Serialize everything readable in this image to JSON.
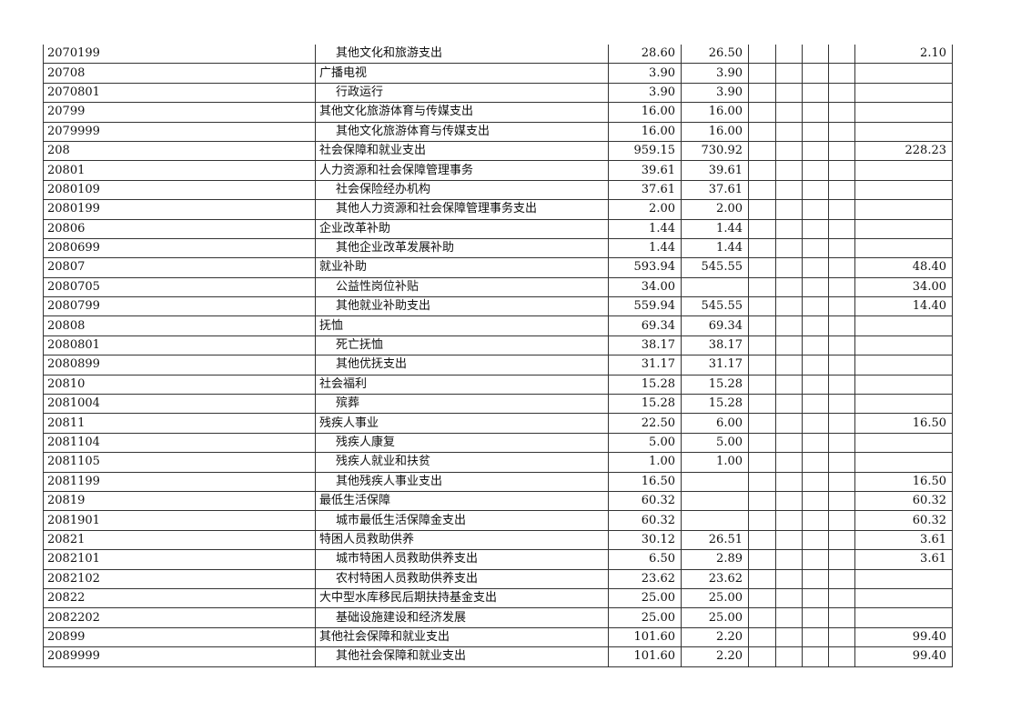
{
  "rows": [
    {
      "code": "2070199",
      "name": "其他文化和旅游支出",
      "sub": true,
      "c1": "28.60",
      "c2": "26.50",
      "c3": "",
      "c4": "",
      "c5": "",
      "c6": "",
      "c7": "2.10"
    },
    {
      "code": "20708",
      "name": "广播电视",
      "sub": false,
      "c1": "3.90",
      "c2": "3.90",
      "c3": "",
      "c4": "",
      "c5": "",
      "c6": "",
      "c7": ""
    },
    {
      "code": "2070801",
      "name": "行政运行",
      "sub": true,
      "c1": "3.90",
      "c2": "3.90",
      "c3": "",
      "c4": "",
      "c5": "",
      "c6": "",
      "c7": ""
    },
    {
      "code": "20799",
      "name": "其他文化旅游体育与传媒支出",
      "sub": false,
      "c1": "16.00",
      "c2": "16.00",
      "c3": "",
      "c4": "",
      "c5": "",
      "c6": "",
      "c7": ""
    },
    {
      "code": "2079999",
      "name": "其他文化旅游体育与传媒支出",
      "sub": true,
      "c1": "16.00",
      "c2": "16.00",
      "c3": "",
      "c4": "",
      "c5": "",
      "c6": "",
      "c7": ""
    },
    {
      "code": "208",
      "name": "社会保障和就业支出",
      "sub": false,
      "c1": "959.15",
      "c2": "730.92",
      "c3": "",
      "c4": "",
      "c5": "",
      "c6": "",
      "c7": "228.23"
    },
    {
      "code": "20801",
      "name": "人力资源和社会保障管理事务",
      "sub": false,
      "c1": "39.61",
      "c2": "39.61",
      "c3": "",
      "c4": "",
      "c5": "",
      "c6": "",
      "c7": ""
    },
    {
      "code": "2080109",
      "name": "社会保险经办机构",
      "sub": true,
      "c1": "37.61",
      "c2": "37.61",
      "c3": "",
      "c4": "",
      "c5": "",
      "c6": "",
      "c7": ""
    },
    {
      "code": "2080199",
      "name": "其他人力资源和社会保障管理事务支出",
      "sub": true,
      "c1": "2.00",
      "c2": "2.00",
      "c3": "",
      "c4": "",
      "c5": "",
      "c6": "",
      "c7": ""
    },
    {
      "code": "20806",
      "name": "企业改革补助",
      "sub": false,
      "c1": "1.44",
      "c2": "1.44",
      "c3": "",
      "c4": "",
      "c5": "",
      "c6": "",
      "c7": ""
    },
    {
      "code": "2080699",
      "name": "其他企业改革发展补助",
      "sub": true,
      "c1": "1.44",
      "c2": "1.44",
      "c3": "",
      "c4": "",
      "c5": "",
      "c6": "",
      "c7": ""
    },
    {
      "code": "20807",
      "name": "就业补助",
      "sub": false,
      "c1": "593.94",
      "c2": "545.55",
      "c3": "",
      "c4": "",
      "c5": "",
      "c6": "",
      "c7": "48.40"
    },
    {
      "code": "2080705",
      "name": "公益性岗位补贴",
      "sub": true,
      "c1": "34.00",
      "c2": "",
      "c3": "",
      "c4": "",
      "c5": "",
      "c6": "",
      "c7": "34.00"
    },
    {
      "code": "2080799",
      "name": "其他就业补助支出",
      "sub": true,
      "c1": "559.94",
      "c2": "545.55",
      "c3": "",
      "c4": "",
      "c5": "",
      "c6": "",
      "c7": "14.40"
    },
    {
      "code": "20808",
      "name": "抚恤",
      "sub": false,
      "c1": "69.34",
      "c2": "69.34",
      "c3": "",
      "c4": "",
      "c5": "",
      "c6": "",
      "c7": ""
    },
    {
      "code": "2080801",
      "name": "死亡抚恤",
      "sub": true,
      "c1": "38.17",
      "c2": "38.17",
      "c3": "",
      "c4": "",
      "c5": "",
      "c6": "",
      "c7": ""
    },
    {
      "code": "2080899",
      "name": "其他优抚支出",
      "sub": true,
      "c1": "31.17",
      "c2": "31.17",
      "c3": "",
      "c4": "",
      "c5": "",
      "c6": "",
      "c7": ""
    },
    {
      "code": "20810",
      "name": "社会福利",
      "sub": false,
      "c1": "15.28",
      "c2": "15.28",
      "c3": "",
      "c4": "",
      "c5": "",
      "c6": "",
      "c7": ""
    },
    {
      "code": "2081004",
      "name": "殡葬",
      "sub": true,
      "c1": "15.28",
      "c2": "15.28",
      "c3": "",
      "c4": "",
      "c5": "",
      "c6": "",
      "c7": ""
    },
    {
      "code": "20811",
      "name": "残疾人事业",
      "sub": false,
      "c1": "22.50",
      "c2": "6.00",
      "c3": "",
      "c4": "",
      "c5": "",
      "c6": "",
      "c7": "16.50"
    },
    {
      "code": "2081104",
      "name": "残疾人康复",
      "sub": true,
      "c1": "5.00",
      "c2": "5.00",
      "c3": "",
      "c4": "",
      "c5": "",
      "c6": "",
      "c7": ""
    },
    {
      "code": "2081105",
      "name": "残疾人就业和扶贫",
      "sub": true,
      "c1": "1.00",
      "c2": "1.00",
      "c3": "",
      "c4": "",
      "c5": "",
      "c6": "",
      "c7": ""
    },
    {
      "code": "2081199",
      "name": "其他残疾人事业支出",
      "sub": true,
      "c1": "16.50",
      "c2": "",
      "c3": "",
      "c4": "",
      "c5": "",
      "c6": "",
      "c7": "16.50"
    },
    {
      "code": "20819",
      "name": "最低生活保障",
      "sub": false,
      "c1": "60.32",
      "c2": "",
      "c3": "",
      "c4": "",
      "c5": "",
      "c6": "",
      "c7": "60.32"
    },
    {
      "code": "2081901",
      "name": "城市最低生活保障金支出",
      "sub": true,
      "c1": "60.32",
      "c2": "",
      "c3": "",
      "c4": "",
      "c5": "",
      "c6": "",
      "c7": "60.32"
    },
    {
      "code": "20821",
      "name": "特困人员救助供养",
      "sub": false,
      "c1": "30.12",
      "c2": "26.51",
      "c3": "",
      "c4": "",
      "c5": "",
      "c6": "",
      "c7": "3.61"
    },
    {
      "code": "2082101",
      "name": "城市特困人员救助供养支出",
      "sub": true,
      "c1": "6.50",
      "c2": "2.89",
      "c3": "",
      "c4": "",
      "c5": "",
      "c6": "",
      "c7": "3.61"
    },
    {
      "code": "2082102",
      "name": "农村特困人员救助供养支出",
      "sub": true,
      "c1": "23.62",
      "c2": "23.62",
      "c3": "",
      "c4": "",
      "c5": "",
      "c6": "",
      "c7": ""
    },
    {
      "code": "20822",
      "name": "大中型水库移民后期扶持基金支出",
      "sub": false,
      "c1": "25.00",
      "c2": "25.00",
      "c3": "",
      "c4": "",
      "c5": "",
      "c6": "",
      "c7": ""
    },
    {
      "code": "2082202",
      "name": "基础设施建设和经济发展",
      "sub": true,
      "c1": "25.00",
      "c2": "25.00",
      "c3": "",
      "c4": "",
      "c5": "",
      "c6": "",
      "c7": ""
    },
    {
      "code": "20899",
      "name": "其他社会保障和就业支出",
      "sub": false,
      "c1": "101.60",
      "c2": "2.20",
      "c3": "",
      "c4": "",
      "c5": "",
      "c6": "",
      "c7": "99.40"
    },
    {
      "code": "2089999",
      "name": "其他社会保障和就业支出",
      "sub": true,
      "c1": "101.60",
      "c2": "2.20",
      "c3": "",
      "c4": "",
      "c5": "",
      "c6": "",
      "c7": "99.40"
    }
  ]
}
